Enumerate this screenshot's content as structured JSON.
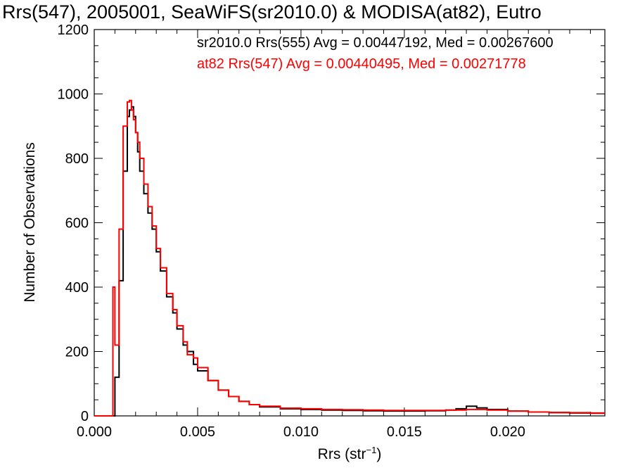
{
  "chart_data": {
    "type": "line",
    "title": "Rrs(547), 2005001, SeaWiFS(sr2010.0) & MODISA(at82), Eutro",
    "xlabel_base": "Rrs (str",
    "xlabel_sup": "−1",
    "xlabel_close": ")",
    "ylabel": "Number of Observations",
    "xlim": [
      0.0,
      0.0247
    ],
    "ylim": [
      0,
      1200
    ],
    "x_ticks": [
      0.0,
      0.005,
      0.01,
      0.015,
      0.02
    ],
    "x_tick_labels": [
      "0.000",
      "0.005",
      "0.010",
      "0.015",
      "0.020"
    ],
    "y_ticks": [
      0,
      200,
      400,
      600,
      800,
      1000,
      1200
    ],
    "y_tick_labels": [
      "0",
      "200",
      "400",
      "600",
      "800",
      "1000",
      "1200"
    ],
    "grid": false,
    "legend_position": "top-right",
    "series": [
      {
        "name": "sr2010.0 Rrs(555) Avg = 0.00447192, Med = 0.00267600",
        "color": "#000000",
        "x": [
          0.0,
          0.0008,
          0.001,
          0.0012,
          0.0014,
          0.0016,
          0.0017,
          0.0018,
          0.0019,
          0.002,
          0.0021,
          0.0022,
          0.0024,
          0.0026,
          0.0028,
          0.003,
          0.0032,
          0.0035,
          0.0038,
          0.004,
          0.0043,
          0.0045,
          0.0048,
          0.005,
          0.0055,
          0.006,
          0.0065,
          0.007,
          0.0075,
          0.008,
          0.009,
          0.01,
          0.011,
          0.012,
          0.013,
          0.014,
          0.015,
          0.016,
          0.017,
          0.0175,
          0.018,
          0.0185,
          0.019,
          0.02,
          0.021,
          0.022,
          0.023,
          0.024,
          0.0247
        ],
        "y": [
          0,
          0,
          120,
          420,
          760,
          930,
          950,
          960,
          930,
          880,
          820,
          760,
          690,
          630,
          580,
          510,
          450,
          370,
          320,
          270,
          220,
          200,
          160,
          140,
          110,
          80,
          60,
          45,
          35,
          28,
          22,
          20,
          18,
          17,
          16,
          15,
          15,
          16,
          18,
          22,
          30,
          25,
          20,
          15,
          12,
          10,
          9,
          8,
          8
        ]
      },
      {
        "name": "at82 Rrs(547) Avg = 0.00440495, Med = 0.00271778",
        "color": "#ff0000",
        "x": [
          0.0,
          0.00085,
          0.0009,
          0.001,
          0.0012,
          0.0014,
          0.0016,
          0.0017,
          0.0018,
          0.0019,
          0.002,
          0.0021,
          0.0022,
          0.0024,
          0.0026,
          0.0028,
          0.003,
          0.0032,
          0.0035,
          0.0038,
          0.004,
          0.0043,
          0.0045,
          0.0048,
          0.005,
          0.0055,
          0.006,
          0.0065,
          0.007,
          0.0075,
          0.008,
          0.009,
          0.01,
          0.011,
          0.012,
          0.013,
          0.014,
          0.015,
          0.016,
          0.017,
          0.018,
          0.019,
          0.02,
          0.021,
          0.022,
          0.023,
          0.024,
          0.0247
        ],
        "y": [
          0,
          0,
          400,
          220,
          580,
          900,
          975,
          980,
          950,
          920,
          880,
          850,
          800,
          720,
          650,
          590,
          520,
          460,
          380,
          330,
          280,
          230,
          190,
          180,
          150,
          110,
          80,
          60,
          45,
          35,
          30,
          24,
          22,
          20,
          19,
          18,
          17,
          17,
          17,
          18,
          20,
          18,
          15,
          12,
          11,
          10,
          9,
          9
        ]
      }
    ]
  }
}
